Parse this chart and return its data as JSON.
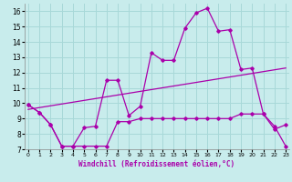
{
  "xlabel": "Windchill (Refroidissement éolien,°C)",
  "bg_color": "#c8ecec",
  "grid_color": "#a8d8d8",
  "line_color": "#aa00aa",
  "line1_x": [
    0,
    1,
    2,
    3,
    4,
    5,
    6,
    7,
    8,
    9,
    10,
    11,
    12,
    13,
    14,
    15,
    16,
    17,
    18,
    19,
    20,
    21,
    22,
    23
  ],
  "line1_y": [
    9.9,
    9.4,
    8.6,
    7.2,
    7.2,
    8.4,
    8.5,
    11.5,
    11.5,
    9.2,
    9.8,
    13.3,
    12.8,
    12.8,
    14.9,
    15.9,
    16.2,
    14.7,
    14.8,
    12.2,
    12.3,
    9.3,
    8.3,
    8.6
  ],
  "line2_x": [
    0,
    1,
    2,
    3,
    4,
    5,
    6,
    7,
    8,
    9,
    10,
    11,
    12,
    13,
    14,
    15,
    16,
    17,
    18,
    19,
    20,
    21,
    22,
    23
  ],
  "line2_y": [
    9.9,
    9.4,
    8.6,
    7.2,
    7.2,
    7.2,
    7.2,
    7.2,
    8.8,
    8.8,
    9.0,
    9.0,
    9.0,
    9.0,
    9.0,
    9.0,
    9.0,
    9.0,
    9.0,
    9.3,
    9.3,
    9.3,
    8.5,
    7.2
  ],
  "line3_x": [
    0,
    23
  ],
  "line3_y": [
    9.6,
    12.3
  ],
  "ylim": [
    7,
    16.5
  ],
  "yticks": [
    7,
    8,
    9,
    10,
    11,
    12,
    13,
    14,
    15,
    16
  ],
  "xlim": [
    -0.3,
    23.3
  ],
  "xticks": [
    0,
    1,
    2,
    3,
    4,
    5,
    6,
    7,
    8,
    9,
    10,
    11,
    12,
    13,
    14,
    15,
    16,
    17,
    18,
    19,
    20,
    21,
    22,
    23
  ]
}
